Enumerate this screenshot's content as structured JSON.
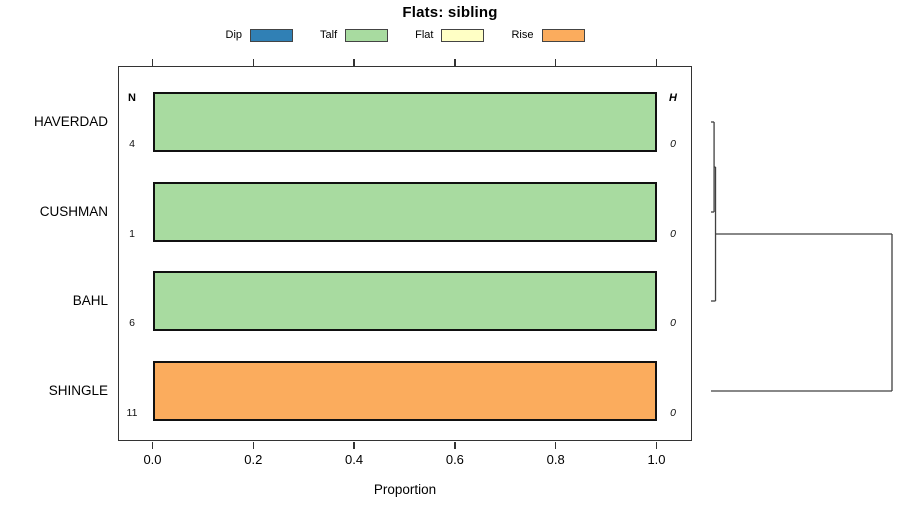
{
  "title": "Flats: sibling",
  "legend": {
    "items": [
      {
        "label": "Dip",
        "color": "#3080B5"
      },
      {
        "label": "Talf",
        "color": "#A8DBA0"
      },
      {
        "label": "Flat",
        "color": "#FFFFC5"
      },
      {
        "label": "Rise",
        "color": "#FBAC5D"
      }
    ]
  },
  "columns": {
    "n_header": "N",
    "h_header": "H"
  },
  "xlabel": "Proportion",
  "chart_data": {
    "type": "bar",
    "orientation": "horizontal",
    "stacked": true,
    "title": "Flats: sibling",
    "xlabel": "Proportion",
    "xlim": [
      0,
      1
    ],
    "categories": [
      "HAVERDAD",
      "CUSHMAN",
      "BAHL",
      "SHINGLE"
    ],
    "series": [
      {
        "name": "Dip",
        "values": [
          0,
          0,
          0,
          0
        ]
      },
      {
        "name": "Talf",
        "values": [
          1.0,
          1.0,
          1.0,
          0
        ]
      },
      {
        "name": "Flat",
        "values": [
          0,
          0,
          0,
          0
        ]
      },
      {
        "name": "Rise",
        "values": [
          0,
          0,
          0,
          1.0
        ]
      }
    ],
    "n_values": [
      "4",
      "1",
      "6",
      "11"
    ],
    "h_values": [
      "0",
      "0",
      "0",
      "0"
    ],
    "x_ticks": [
      0,
      0.2,
      0.4,
      0.6,
      0.8,
      1.0
    ],
    "x_tick_labels": [
      "0.0",
      "0.2",
      "0.4",
      "0.6",
      "0.8",
      "1.0"
    ],
    "legend_position": "top",
    "grid": false
  },
  "dendrogram": {
    "leaves": [
      "HAVERDAD",
      "CUSHMAN",
      "BAHL",
      "SHINGLE"
    ],
    "merges": [
      {
        "a": 0,
        "b": 1,
        "height": 0.017
      },
      {
        "a": "m0",
        "b": 2,
        "height": 0.025
      },
      {
        "a": "m1",
        "b": 3,
        "height": 1.0
      }
    ]
  }
}
